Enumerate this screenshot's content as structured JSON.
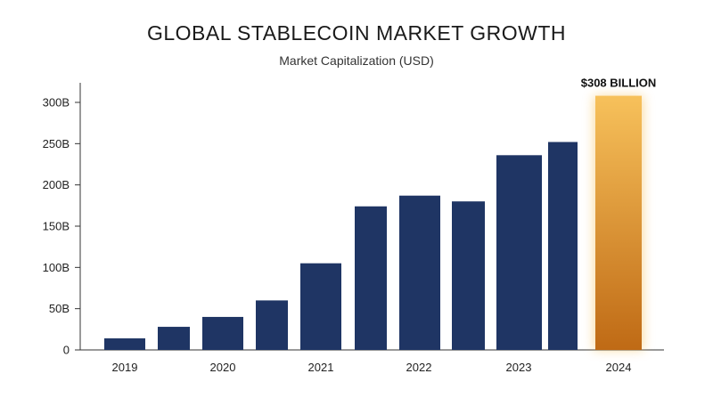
{
  "header": {
    "title": "GLOBAL STABLECOIN MARKET GROWTH",
    "subtitle": "Market Capitalization (USD)"
  },
  "colors": {
    "bar_primary": "#1f3564",
    "bar_highlight_top": "#f7c15b",
    "bar_highlight_bottom": "#bf6a15",
    "axis": "#333333"
  },
  "chart_data": {
    "type": "bar",
    "title": "GLOBAL STABLECOIN MARKET GROWTH",
    "subtitle": "Market Capitalization (USD)",
    "xlabel": "",
    "ylabel": "",
    "ylim": [
      0,
      300
    ],
    "y_unit": "B",
    "y_ticks": [
      "0",
      "50B",
      "100B",
      "150B",
      "200B",
      "250B",
      "300B"
    ],
    "x_tick_labels": [
      "2019",
      "2020",
      "2021",
      "2022",
      "2023",
      "2024"
    ],
    "values": [
      14,
      28,
      40,
      60,
      105,
      174,
      187,
      180,
      236,
      252,
      308
    ],
    "highlight_index": 10,
    "annotation": "$308 BILLION",
    "grid": false
  }
}
